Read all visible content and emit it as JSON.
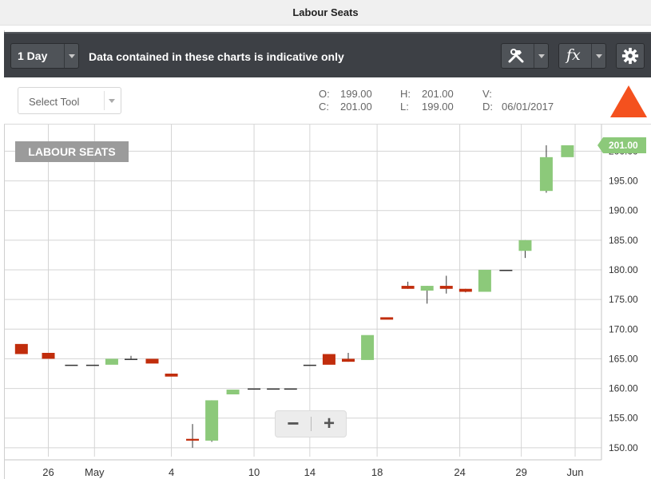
{
  "window": {
    "title": "Labour Seats"
  },
  "toolbar": {
    "period_label": "1 Day",
    "notice": "Data contained in these charts is indicative only",
    "tools_icon": "hammer-wrench-icon",
    "fx_label": "fx",
    "settings_icon": "gear-icon"
  },
  "info": {
    "select_tool_label": "Select Tool",
    "open_label": "O:",
    "open_value": "199.00",
    "close_label": "C:",
    "close_value": "201.00",
    "high_label": "H:",
    "high_value": "201.00",
    "low_label": "L:",
    "low_value": "199.00",
    "volume_label": "V:",
    "volume_value": "",
    "date_label": "D:",
    "date_value": "06/01/2017",
    "trend_icon": "up-triangle-icon"
  },
  "zoom": {
    "minus_label": "−",
    "plus_label": "+"
  },
  "colors": {
    "up": "#8cc97a",
    "down": "#c12d0c",
    "flat": "#333333",
    "trend": "#f4511e",
    "last_price_tag": "#8cc97a"
  },
  "chart_data": {
    "type": "candlestick",
    "title": "LABOUR SEATS",
    "x_tick_labels": [
      "26",
      "May",
      "4",
      "10",
      "14",
      "18",
      "24",
      "29",
      "Jun"
    ],
    "y_ticks": [
      150,
      155,
      160,
      165,
      170,
      175,
      180,
      185,
      190,
      195,
      200
    ],
    "y_tick_labels": [
      "150.00",
      "155.00",
      "160.00",
      "165.00",
      "170.00",
      "175.00",
      "180.00",
      "185.00",
      "190.00",
      "195.00",
      "200.00"
    ],
    "ylim": [
      148.5,
      204.5
    ],
    "grid": true,
    "last_price_label": "201.00",
    "last_price": 201,
    "candles": [
      {
        "date": "2017-04-24",
        "open": 167.5,
        "high": 167.5,
        "low": 165.8,
        "close": 165.8
      },
      {
        "date": "2017-04-25",
        "open": 166.0,
        "high": 166.0,
        "low": 165.0,
        "close": 165.0
      },
      {
        "date": "2017-04-26",
        "open": 164.0,
        "high": 164.0,
        "low": 164.0,
        "close": 164.0
      },
      {
        "date": "2017-04-27",
        "open": 164.0,
        "high": 164.0,
        "low": 164.0,
        "close": 164.0
      },
      {
        "date": "2017-05-01",
        "open": 164.0,
        "high": 165.0,
        "low": 164.0,
        "close": 165.0
      },
      {
        "date": "2017-05-02",
        "open": 165.0,
        "high": 165.5,
        "low": 165.0,
        "close": 165.0
      },
      {
        "date": "2017-05-03",
        "open": 165.0,
        "high": 165.0,
        "low": 164.2,
        "close": 164.2
      },
      {
        "date": "2017-05-04",
        "open": 162.5,
        "high": 162.5,
        "low": 162.0,
        "close": 162.0
      },
      {
        "date": "2017-05-05",
        "open": 151.5,
        "high": 154.0,
        "low": 150.0,
        "close": 151.2
      },
      {
        "date": "2017-05-08",
        "open": 151.2,
        "high": 158.0,
        "low": 151.0,
        "close": 158.0
      },
      {
        "date": "2017-05-09",
        "open": 159.0,
        "high": 159.8,
        "low": 159.0,
        "close": 159.8
      },
      {
        "date": "2017-05-10",
        "open": 160.0,
        "high": 160.0,
        "low": 160.0,
        "close": 160.0
      },
      {
        "date": "2017-05-11",
        "open": 160.0,
        "high": 160.0,
        "low": 160.0,
        "close": 160.0
      },
      {
        "date": "2017-05-12",
        "open": 160.0,
        "high": 160.0,
        "low": 160.0,
        "close": 160.0
      },
      {
        "date": "2017-05-15",
        "open": 164.0,
        "high": 164.0,
        "low": 164.0,
        "close": 164.0
      },
      {
        "date": "2017-05-16",
        "open": 165.8,
        "high": 165.8,
        "low": 164.0,
        "close": 164.0
      },
      {
        "date": "2017-05-17",
        "open": 165.0,
        "high": 166.0,
        "low": 164.5,
        "close": 164.5
      },
      {
        "date": "2017-05-18",
        "open": 164.8,
        "high": 169.0,
        "low": 164.8,
        "close": 169.0
      },
      {
        "date": "2017-05-19",
        "open": 172.0,
        "high": 172.0,
        "low": 171.6,
        "close": 171.6
      },
      {
        "date": "2017-05-22",
        "open": 177.3,
        "high": 178.0,
        "low": 176.8,
        "close": 176.8
      },
      {
        "date": "2017-05-23",
        "open": 176.5,
        "high": 177.3,
        "low": 174.3,
        "close": 177.3
      },
      {
        "date": "2017-05-24",
        "open": 177.3,
        "high": 179.0,
        "low": 176.0,
        "close": 176.8
      },
      {
        "date": "2017-05-25",
        "open": 176.8,
        "high": 176.8,
        "low": 176.2,
        "close": 176.3
      },
      {
        "date": "2017-05-26",
        "open": 176.3,
        "high": 180.0,
        "low": 176.3,
        "close": 180.0
      },
      {
        "date": "2017-05-29",
        "open": 180.0,
        "high": 180.0,
        "low": 180.0,
        "close": 180.0
      },
      {
        "date": "2017-05-30",
        "open": 183.2,
        "high": 185.0,
        "low": 182.0,
        "close": 185.0
      },
      {
        "date": "2017-05-31",
        "open": 193.3,
        "high": 201.0,
        "low": 193.0,
        "close": 199.0
      },
      {
        "date": "2017-06-01",
        "open": 199.0,
        "high": 201.0,
        "low": 199.0,
        "close": 201.0
      }
    ]
  }
}
